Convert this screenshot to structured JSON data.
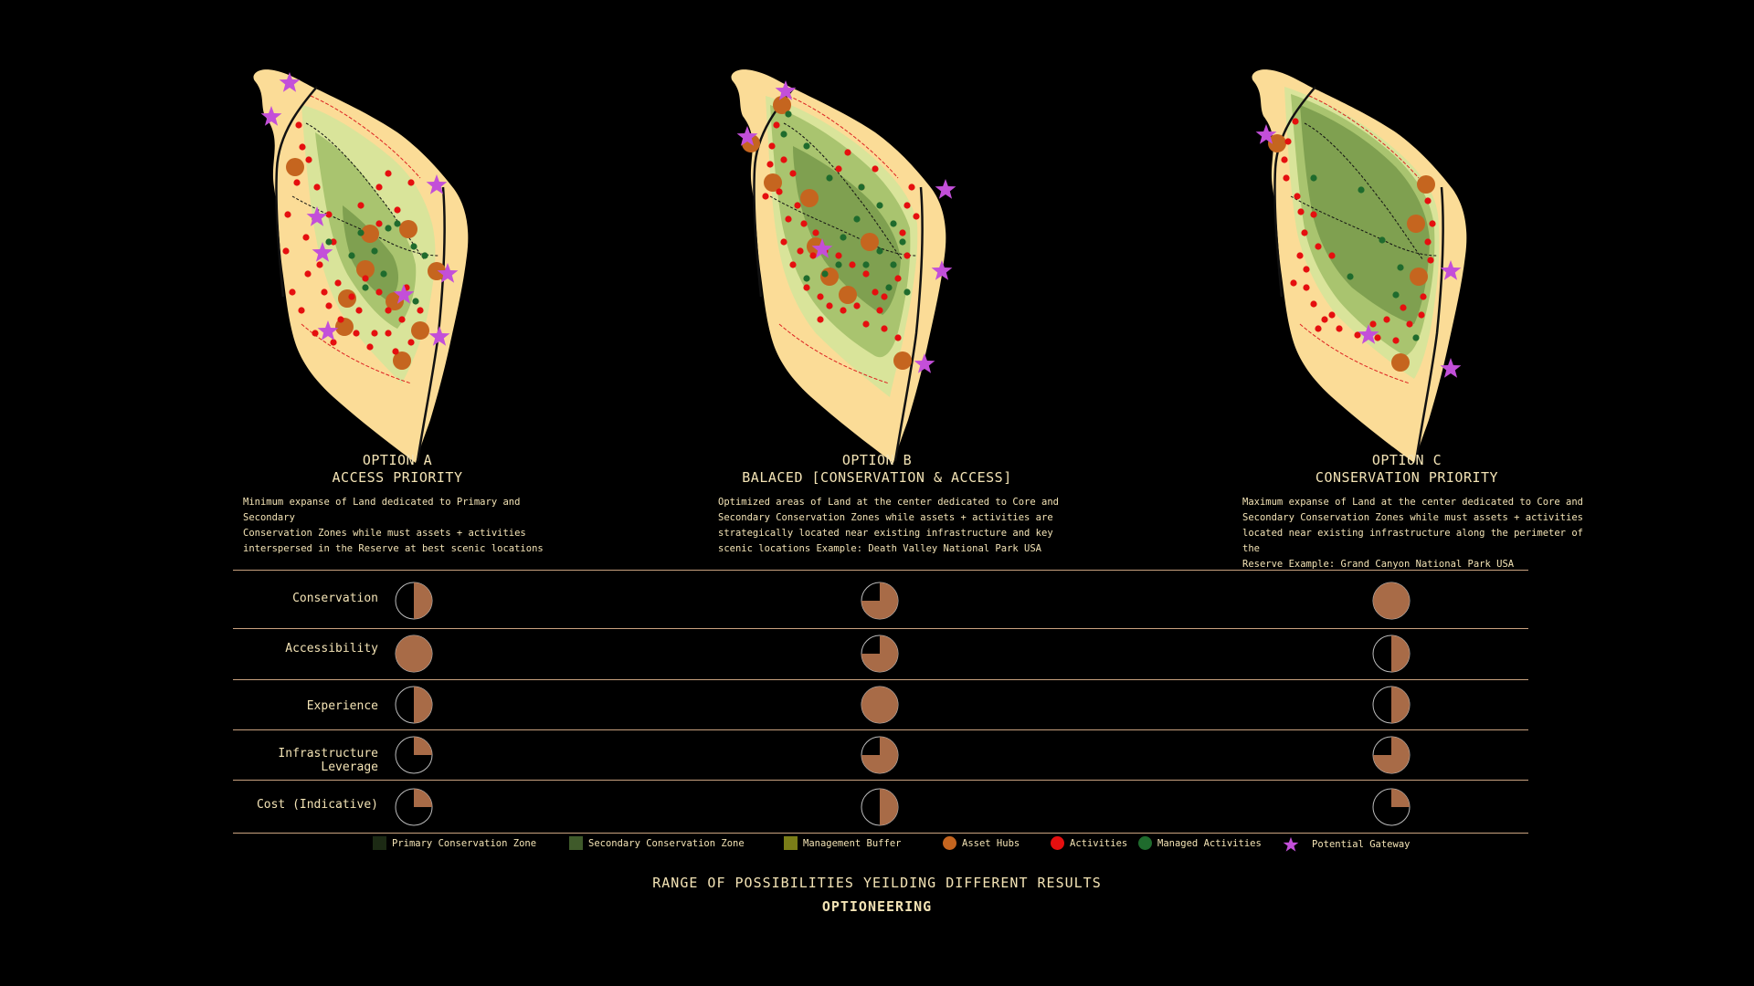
{
  "colors": {
    "background": "#000000",
    "land": "#fbdc97",
    "buffer": "#d9e49a",
    "secondary_zone": "#a9c46f",
    "core_zone": "#7fa050",
    "primary_zone": "#5c7a3a",
    "asset_hub": "#c5651f",
    "activity": "#e50f0f",
    "managed_activity": "#1f6b2d",
    "gateway": "#c34fd9",
    "rating_fill": "#a86b47",
    "rule": "#c9a27f"
  },
  "options": [
    {
      "title_line1": "OPTION A",
      "title_line2": "ACCESS PRIORITY",
      "description": "Minimum expanse of Land dedicated to Primary and Secondary\nConservation Zones while must assets + activities\ninterspersed in the Reserve at best scenic locations"
    },
    {
      "title_line1": "OPTION B",
      "title_line2": "BALACED [CONSERVATION & ACCESS]",
      "description": "Optimized areas of Land at the center dedicated to Core and\nSecondary Conservation Zones while assets + activities are\nstrategically located near existing infrastructure and key\nscenic locations Example: Death Valley National Park USA"
    },
    {
      "title_line1": "OPTION C",
      "title_line2": "CONSERVATION PRIORITY",
      "description": "Maximum expanse of Land at the center dedicated to Core and\nSecondary Conservation Zones while must assets + activities\nlocated near existing infrastructure along the perimeter of the\nReserve Example: Grand Canyon National Park USA"
    }
  ],
  "criteria": [
    {
      "label": "Conservation",
      "ratings": [
        0.5,
        0.75,
        1.0
      ]
    },
    {
      "label": "Accessibility",
      "ratings": [
        1.0,
        0.75,
        0.5
      ]
    },
    {
      "label": "Experience",
      "ratings": [
        0.5,
        1.0,
        0.5
      ]
    },
    {
      "label": "Infrastructure Leverage",
      "ratings": [
        0.25,
        0.75,
        0.75
      ]
    },
    {
      "label": "Cost (Indicative)",
      "ratings": [
        0.25,
        0.5,
        0.25
      ]
    }
  ],
  "legend": [
    {
      "label": "Primary Conservation Zone",
      "color": "#1c2a14",
      "icon": "square"
    },
    {
      "label": "Secondary Conservation Zone",
      "color": "#3f5a2a",
      "icon": "square"
    },
    {
      "label": "Management Buffer",
      "color": "#7a7d18",
      "icon": "square"
    },
    {
      "label": "Asset Hubs",
      "color": "#c5651f",
      "icon": "circle"
    },
    {
      "label": "Activities",
      "color": "#e50f0f",
      "icon": "circle"
    },
    {
      "label": "Managed Activities",
      "color": "#1f6b2d",
      "icon": "circle"
    },
    {
      "label": "Potential Gateway",
      "color": "#c34fd9",
      "icon": "star"
    }
  ],
  "footer": {
    "line1": "RANGE OF POSSIBILITIES YEILDING DIFFERENT RESULTS",
    "line2": "OPTIONEERING"
  }
}
